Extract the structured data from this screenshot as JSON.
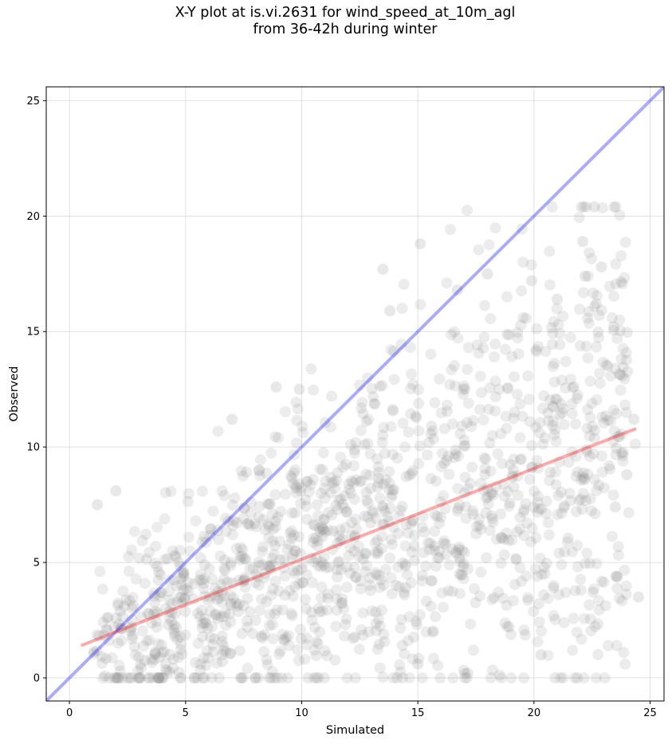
{
  "chart_data": {
    "type": "scatter",
    "title": "X-Y plot at is.vi.2631 for wind_speed_at_10m_agl",
    "subtitle": "from 36-42h during winter",
    "xlabel": "Simulated",
    "ylabel": "Observed",
    "xlim": [
      -1,
      25.6
    ],
    "ylim": [
      -1,
      25.6
    ],
    "xticks": [
      0,
      5,
      10,
      15,
      20,
      25
    ],
    "yticks": [
      0,
      5,
      10,
      15,
      20,
      25
    ],
    "grid": true,
    "colors": {
      "points": "#808080",
      "identity_line": "#0000ff",
      "fit_line": "#ff0000",
      "grid": "#cccccc"
    },
    "series": [
      {
        "kind": "points",
        "approx_count": 1400,
        "x_range": [
          0.7,
          24.5
        ],
        "y_range": [
          0,
          20.4
        ],
        "notable_points": [
          {
            "x": 1.2,
            "y": 7.5
          },
          {
            "x": 2.0,
            "y": 8.1
          },
          {
            "x": 2.0,
            "y": 0.0
          },
          {
            "x": 4.0,
            "y": 0.0
          },
          {
            "x": 7.0,
            "y": 11.2
          },
          {
            "x": 8.9,
            "y": 12.6
          },
          {
            "x": 9.9,
            "y": 12.5
          },
          {
            "x": 13.5,
            "y": 17.7
          },
          {
            "x": 13.8,
            "y": 15.9
          },
          {
            "x": 15.1,
            "y": 18.8
          },
          {
            "x": 15.0,
            "y": 0.6
          },
          {
            "x": 16.7,
            "y": 16.8
          },
          {
            "x": 18.0,
            "y": 17.5
          },
          {
            "x": 19.9,
            "y": 17.2
          },
          {
            "x": 20.3,
            "y": 1.0
          },
          {
            "x": 21.0,
            "y": 16.4
          },
          {
            "x": 22.1,
            "y": 18.9
          },
          {
            "x": 22.2,
            "y": 17.4
          },
          {
            "x": 22.6,
            "y": 20.4
          },
          {
            "x": 22.9,
            "y": 17.8
          },
          {
            "x": 23.5,
            "y": 7.4
          },
          {
            "x": 24.0,
            "y": 8.8
          },
          {
            "x": 24.3,
            "y": 11.2
          },
          {
            "x": 24.5,
            "y": 3.5
          }
        ]
      },
      {
        "kind": "identity_line",
        "x": [
          -1,
          25.6
        ],
        "y": [
          -1,
          25.6
        ]
      },
      {
        "kind": "fit_line",
        "x": [
          0.5,
          24.4
        ],
        "y": [
          1.4,
          10.8
        ]
      }
    ]
  }
}
